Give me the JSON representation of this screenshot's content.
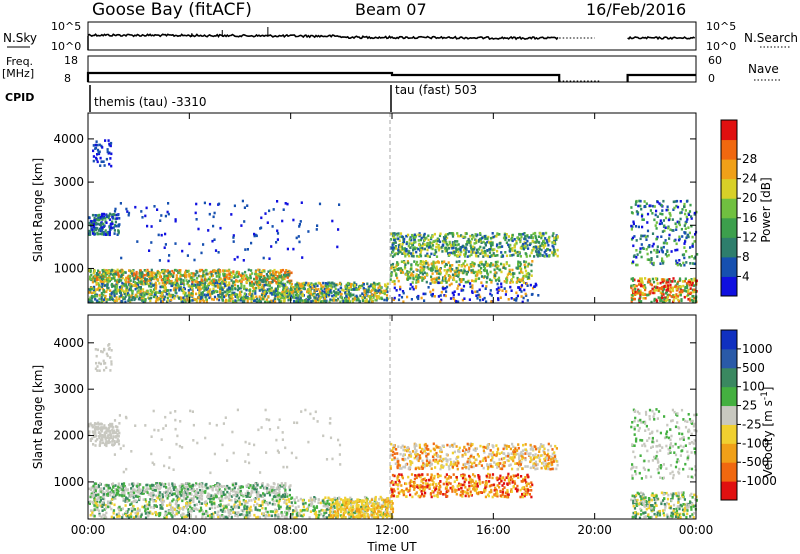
{
  "header": {
    "station": "Goose Bay (fitACF)",
    "beam": "Beam 07",
    "date": "16/Feb/2016"
  },
  "panel_labels": {
    "nsky": "N.Sky",
    "freq_line1": "Freq.",
    "freq_line2": "[MHz]",
    "cpid": "CPID",
    "nsearch": "N.Search",
    "nave": "Nave",
    "sky_tick_top": "10^5",
    "sky_tick_bottom": "10^0",
    "search_tick_top": "10^5",
    "search_tick_bottom": "10^0",
    "freq_tick_top": "18",
    "freq_tick_bottom": "8",
    "nave_tick_top": "60",
    "nave_tick_bottom": "0"
  },
  "cpid_segments": [
    {
      "label": "themis (tau) -3310",
      "start_hour": 0
    },
    {
      "label": "tau (fast) 503",
      "start_hour": 12
    }
  ],
  "chart_data": [
    {
      "type": "heatmap",
      "name": "power",
      "ylabel": "Slant Range [km]",
      "xlabel": "Time UT",
      "xlim_hours": [
        0,
        24
      ],
      "ylim": [
        200,
        4600
      ],
      "x_tick_labels": [
        "00:00",
        "04:00",
        "08:00",
        "12:00",
        "16:00",
        "20:00",
        "00:00"
      ],
      "y_ticks": [
        1000,
        2000,
        3000,
        4000
      ],
      "colorbar": {
        "label": "Power [dB]",
        "range": [
          0,
          32
        ],
        "tick_values": [
          4,
          8,
          12,
          16,
          20,
          24,
          28
        ],
        "colors": [
          "#1010e0",
          "#1650b0",
          "#2e7e6c",
          "#3c9f4c",
          "#70c040",
          "#d8d028",
          "#f0a018",
          "#f06810",
          "#e01010"
        ]
      },
      "scatter_regions": [
        {
          "t_start": 0.0,
          "t_end": 11.8,
          "r_start": 250,
          "r_end": 1500,
          "level": "8-28"
        },
        {
          "t_start": 0.0,
          "t_end": 1.2,
          "r_start": 1800,
          "r_end": 2300,
          "level": "4-16"
        },
        {
          "t_start": 0.1,
          "t_end": 0.9,
          "r_start": 3400,
          "r_end": 4000,
          "level": "4-8"
        },
        {
          "t_start": 11.9,
          "t_end": 18.5,
          "r_start": 700,
          "r_end": 1900,
          "level": "8-28"
        },
        {
          "t_start": 21.4,
          "t_end": 24.0,
          "r_start": 250,
          "r_end": 2600,
          "level": "4-32"
        }
      ]
    },
    {
      "type": "heatmap",
      "name": "velocity",
      "ylabel": "Slant Range [km]",
      "xlabel": "Time UT",
      "xlim_hours": [
        0,
        24
      ],
      "ylim": [
        200,
        4600
      ],
      "x_tick_labels": [
        "00:00",
        "04:00",
        "08:00",
        "12:00",
        "16:00",
        "20:00",
        "00:00"
      ],
      "y_ticks": [
        1000,
        2000,
        3000,
        4000
      ],
      "colorbar": {
        "label": "Velocity [m s^-1]",
        "tick_values": [
          "1000",
          "500",
          "100",
          "25",
          "-25",
          "-100",
          "-500",
          "-1000"
        ],
        "colors": [
          "#1030c0",
          "#2a5aa8",
          "#3a8860",
          "#44b040",
          "#c8c8c0",
          "#f0d030",
          "#f0a018",
          "#f06810",
          "#e01010"
        ]
      },
      "scatter_regions": [
        {
          "t_start": 0.0,
          "t_end": 11.8,
          "r_start": 250,
          "r_end": 1500,
          "level": "ground"
        },
        {
          "t_start": 10.0,
          "t_end": 12.0,
          "r_start": 250,
          "r_end": 700,
          "level": "-100"
        },
        {
          "t_start": 11.9,
          "t_end": 18.5,
          "r_start": 700,
          "r_end": 1900,
          "level": "-100 to -500"
        },
        {
          "t_start": 21.4,
          "t_end": 24.0,
          "r_start": 250,
          "r_end": 2600,
          "level": "ground"
        }
      ]
    }
  ]
}
